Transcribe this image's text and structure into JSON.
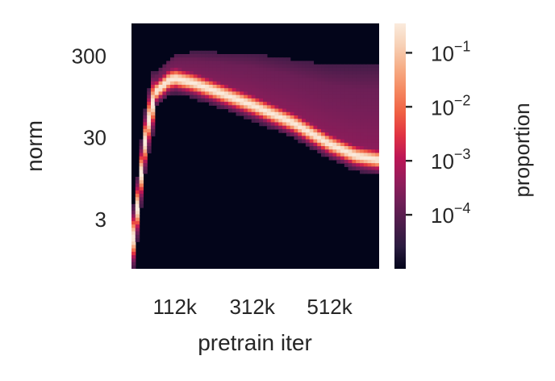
{
  "chart_data": {
    "type": "heatmap",
    "title": "",
    "xlabel": "pretrain iter",
    "ylabel": "norm",
    "x_tick_labels": [
      "112k",
      "312k",
      "512k"
    ],
    "x_ticks": [
      112000,
      312000,
      512000
    ],
    "xlim": [
      0,
      640000
    ],
    "y_tick_labels": [
      "300",
      "30",
      "3"
    ],
    "y_ticks": [
      300,
      30,
      3
    ],
    "ylim": [
      0.75,
      750
    ],
    "y_scale": "log",
    "grid": false,
    "colorbar": {
      "label": "proportion",
      "scale": "log",
      "range": [
        1e-05,
        0.35
      ],
      "tick_values": [
        0.1,
        0.01,
        0.001,
        0.0001
      ],
      "tick_mantissa": "10",
      "tick_exponents": [
        "−1",
        "−2",
        "−3",
        "−4"
      ],
      "colormap": "rocket",
      "colors": [
        "#03051a",
        "#2b1c40",
        "#4c1d4b",
        "#701f57",
        "#961c5b",
        "#bd1655",
        "#e13342",
        "#f06043",
        "#f58860",
        "#f6ad86",
        "#f7d0b5",
        "#faebdd"
      ]
    },
    "distribution": {
      "description_of_ridge": "peak norm per iteration; proportion concentrated along this ridge",
      "x": [
        0,
        16000,
        32000,
        48000,
        64000,
        96000,
        112000,
        160000,
        220000,
        312000,
        420000,
        512000,
        580000,
        640000
      ],
      "peak_norm": [
        1.2,
        4.5,
        22,
        60,
        110,
        150,
        160,
        140,
        110,
        75,
        45,
        25,
        18,
        16
      ],
      "upper_tail_norm": [
        2,
        8,
        40,
        100,
        180,
        260,
        300,
        310,
        300,
        280,
        230,
        190,
        180,
        180
      ]
    }
  }
}
